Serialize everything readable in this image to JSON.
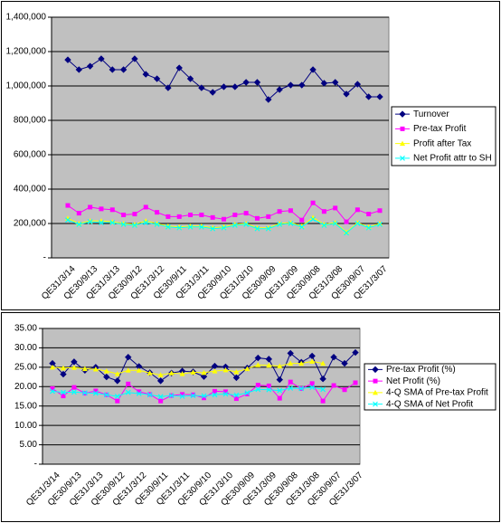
{
  "chart_data": [
    {
      "type": "line",
      "categories": [
        "QE31/3/14",
        null,
        "QE30/9/13",
        null,
        "QE31/3/13",
        null,
        "QE30/9/12",
        null,
        "QE31/3/12",
        null,
        "QE30/9/11",
        null,
        "QE31/3/11",
        null,
        "QE30/9/10",
        null,
        "QE31/3/10",
        null,
        "QE30/9/09",
        null,
        "QE31/3/09",
        null,
        "QE30/9/08",
        null,
        "QE31/3/08",
        null,
        "QE30/9/07",
        null,
        "QE31/3/07"
      ],
      "series": [
        {
          "name": "Turnover",
          "color": "#000080",
          "marker": "diamond",
          "values": [
            1152000,
            1095000,
            1115000,
            1158000,
            1095000,
            1095000,
            1158000,
            1068000,
            1042000,
            989000,
            1105000,
            1042000,
            989000,
            963000,
            995000,
            995000,
            1021000,
            1021000,
            921000,
            979000,
            1005000,
            1005000,
            1095000,
            1016000,
            1021000,
            953000,
            1010000,
            937000,
            937000
          ]
        },
        {
          "name": "Pre-tax Profit",
          "color": "#ff00ff",
          "marker": "square",
          "values": [
            305000,
            260000,
            295000,
            285000,
            280000,
            250000,
            255000,
            295000,
            265000,
            240000,
            240000,
            250000,
            250000,
            235000,
            225000,
            250000,
            260000,
            230000,
            240000,
            270000,
            275000,
            220000,
            320000,
            270000,
            290000,
            210000,
            280000,
            255000,
            275000
          ]
        },
        {
          "name": "Profit after Tax",
          "color": "#ffff00",
          "marker": "triangle",
          "values": [
            230000,
            200000,
            215000,
            215000,
            210000,
            200000,
            195000,
            215000,
            200000,
            185000,
            180000,
            185000,
            185000,
            175000,
            180000,
            195000,
            200000,
            175000,
            175000,
            200000,
            205000,
            185000,
            235000,
            195000,
            205000,
            150000,
            205000,
            180000,
            200000
          ]
        },
        {
          "name": "Net Profit attr to SH",
          "color": "#00ffff",
          "marker": "x",
          "values": [
            220000,
            195000,
            210000,
            205000,
            205000,
            195000,
            190000,
            205000,
            195000,
            180000,
            175000,
            180000,
            180000,
            170000,
            175000,
            190000,
            195000,
            170000,
            170000,
            195000,
            200000,
            180000,
            225000,
            190000,
            200000,
            145000,
            200000,
            175000,
            195000
          ]
        }
      ],
      "ylim": [
        0,
        1400000
      ],
      "yticks": [
        {
          "value": 0,
          "label": "-"
        },
        {
          "value": 200000,
          "label": "200,000"
        },
        {
          "value": 400000,
          "label": "400,000"
        },
        {
          "value": 600000,
          "label": "600,000"
        },
        {
          "value": 800000,
          "label": "800,000"
        },
        {
          "value": 1000000,
          "label": "1,000,000"
        },
        {
          "value": 1200000,
          "label": "1,200,000"
        },
        {
          "value": 1400000,
          "label": "1,400,000"
        }
      ],
      "grid": true,
      "legend": "right"
    },
    {
      "type": "line",
      "categories": [
        "QE31/3/14",
        null,
        "QE30/9/13",
        null,
        "QE31/3/13",
        null,
        "QE30/9/12",
        null,
        "QE31/3/12",
        null,
        "QE30/9/11",
        null,
        "QE31/3/11",
        null,
        "QE30/9/10",
        null,
        "QE31/3/10",
        null,
        "QE30/9/09",
        null,
        "QE31/3/09",
        null,
        "QE30/9/08",
        null,
        "QE31/3/08",
        null,
        "QE30/9/07",
        null,
        "QE31/3/07"
      ],
      "series": [
        {
          "name": "Pre-tax Profit (%)",
          "color": "#000080",
          "marker": "diamond",
          "values": [
            26.0,
            23.2,
            26.4,
            24.2,
            25.0,
            22.5,
            21.5,
            27.6,
            25.2,
            23.6,
            21.5,
            23.5,
            24.0,
            23.8,
            22.6,
            25.3,
            25.1,
            22.3,
            24.8,
            27.4,
            27.1,
            21.8,
            28.6,
            26.3,
            27.9,
            22.0,
            27.6,
            26.0,
            28.8
          ]
        },
        {
          "name": "Net Profit (%)",
          "color": "#ff00ff",
          "marker": "square",
          "values": [
            19.5,
            17.6,
            19.8,
            18.3,
            18.9,
            17.9,
            16.3,
            20.7,
            18.7,
            18.0,
            16.3,
            17.7,
            18.0,
            17.9,
            17.1,
            18.8,
            18.7,
            16.9,
            18.1,
            20.4,
            20.2,
            17.0,
            21.2,
            19.5,
            20.8,
            16.3,
            20.3,
            19.2,
            21.0
          ]
        },
        {
          "name": "4-Q SMA of Pre-tax Profit",
          "color": "#ffff00",
          "marker": "triangle",
          "values": [
            25.0,
            24.8,
            24.9,
            24.6,
            24.5,
            24.0,
            23.3,
            24.2,
            24.2,
            23.5,
            23.0,
            23.5,
            23.3,
            23.7,
            23.6,
            24.0,
            24.3,
            23.8,
            24.6,
            25.6,
            25.5,
            25.3,
            26.0,
            26.0,
            26.5,
            26.0,
            null,
            null,
            null
          ]
        },
        {
          "name": "4-Q SMA of Net  Profit",
          "color": "#00ffff",
          "marker": "x",
          "values": [
            18.8,
            18.5,
            18.6,
            18.4,
            18.3,
            17.9,
            17.5,
            18.5,
            18.2,
            17.9,
            17.4,
            17.7,
            17.5,
            17.7,
            17.6,
            17.9,
            18.1,
            17.8,
            18.4,
            19.3,
            19.2,
            19.0,
            19.6,
            19.5,
            19.8,
            19.3,
            null,
            null,
            null
          ]
        }
      ],
      "ylim": [
        0,
        35
      ],
      "yticks": [
        {
          "value": 0,
          "label": "-"
        },
        {
          "value": 5,
          "label": "5.00"
        },
        {
          "value": 10,
          "label": "10.00"
        },
        {
          "value": 15,
          "label": "15.00"
        },
        {
          "value": 20,
          "label": "20.00"
        },
        {
          "value": 25,
          "label": "25.00"
        },
        {
          "value": 30,
          "label": "30.00"
        },
        {
          "value": 35,
          "label": "35.00"
        }
      ],
      "grid": true,
      "legend": "right"
    }
  ]
}
